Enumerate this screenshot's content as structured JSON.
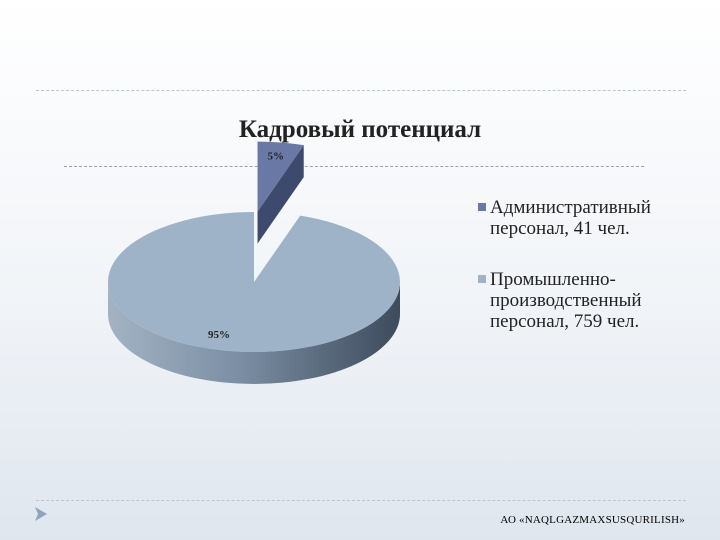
{
  "slide": {
    "title": "Кадровый потенциал",
    "footer": "АО «NAQLGAZMAXSUSQURILISH»",
    "accent": "#4f6b8f"
  },
  "chart_data": {
    "type": "pie",
    "title": "",
    "slices": [
      {
        "label": "Административный персонал, 41 чел.",
        "value": 41,
        "percent_label": "5%",
        "color": "#6a78a6"
      },
      {
        "label": "Промышленно-производственный персонал, 759 чел.",
        "value": 759,
        "percent_label": "95%",
        "color": "#9fb3c8"
      }
    ],
    "style": "3d",
    "exploded": true,
    "legend": "right"
  }
}
